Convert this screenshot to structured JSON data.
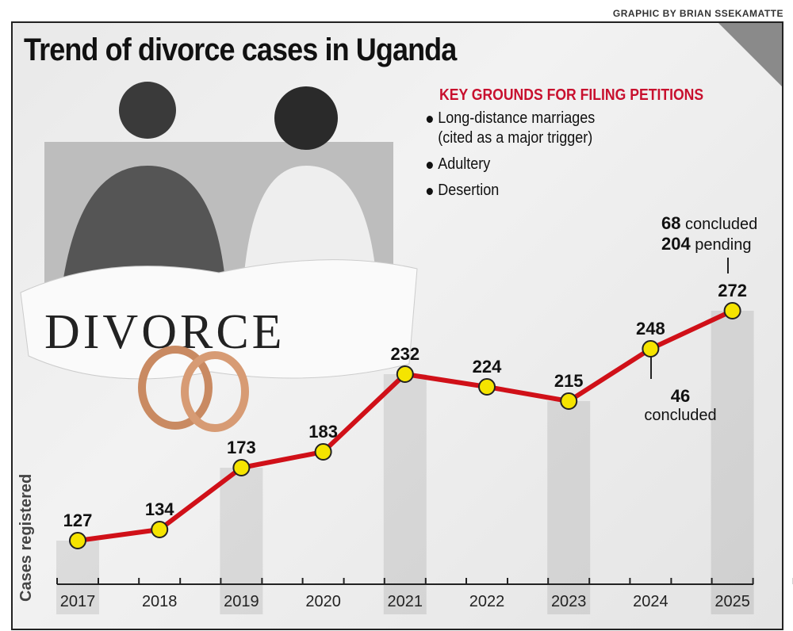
{
  "credit": "GRAPHIC BY BRIAN SSEKAMATTE",
  "title": "Trend of divorce cases in Uganda",
  "grounds": {
    "title": "KEY GROUNDS FOR FILING PETITIONS",
    "items": [
      "Long-distance marriages",
      "(cited as a major trigger)",
      "Adultery",
      "Desertion"
    ]
  },
  "photo_text": "DIVORCE",
  "annotations": {
    "y2025": {
      "concluded_num": "68",
      "concluded_txt": "concluded",
      "pending_num": "204",
      "pending_txt": "pending"
    },
    "y2024": {
      "num": "46",
      "txt": "concluded"
    }
  },
  "colors": {
    "line": "#d01018",
    "marker": "#f5e400",
    "title_red": "#c8102e"
  },
  "chart_data": {
    "type": "line",
    "title": "Trend of divorce cases in Uganda",
    "ylabel": "Cases registered",
    "xlabel": "",
    "categories": [
      "2017",
      "2018",
      "2019",
      "2020",
      "2021",
      "2022",
      "2023",
      "2024",
      "2025"
    ],
    "values": [
      127,
      134,
      173,
      183,
      232,
      224,
      215,
      248,
      272
    ],
    "grid": false
  }
}
